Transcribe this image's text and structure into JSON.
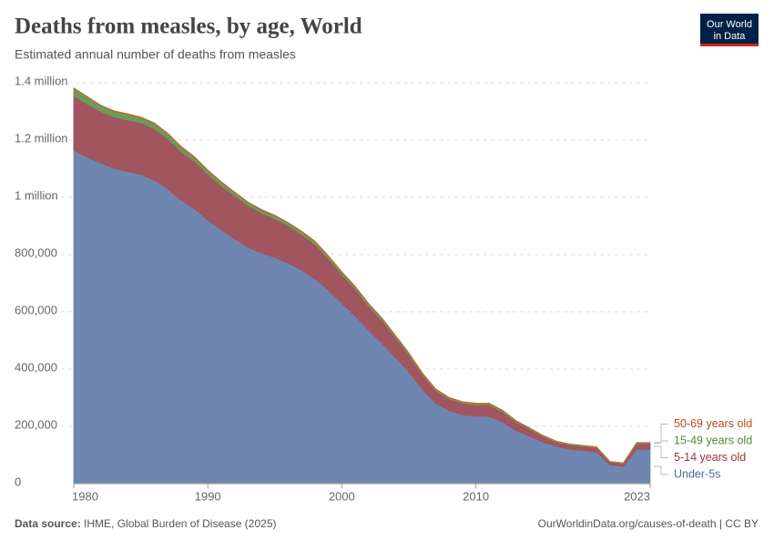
{
  "chart_data": {
    "type": "stacked-area",
    "title": "Deaths from measles, by age, World",
    "subtitle": "Estimated annual number of deaths from measles",
    "logo": [
      "Our World",
      "in Data"
    ],
    "source_label": "Data source:",
    "source": "IHME, Global Burden of Disease (2025)",
    "credit": "OurWorldinData.org/causes-of-death | CC BY",
    "x": [
      1980,
      1981,
      1982,
      1983,
      1984,
      1985,
      1986,
      1987,
      1988,
      1989,
      1990,
      1991,
      1992,
      1993,
      1994,
      1995,
      1996,
      1997,
      1998,
      1999,
      2000,
      2001,
      2002,
      2003,
      2004,
      2005,
      2006,
      2007,
      2008,
      2009,
      2010,
      2011,
      2012,
      2013,
      2014,
      2015,
      2016,
      2017,
      2018,
      2019,
      2020,
      2021,
      2022,
      2023
    ],
    "xlim": [
      1980,
      2023
    ],
    "xticks": [
      1980,
      1990,
      2000,
      2010,
      2023
    ],
    "ylim": [
      0,
      1400000
    ],
    "yticks": [
      0,
      {
        "value": 200000,
        "label": "200,000"
      },
      {
        "value": 400000,
        "label": "400,000"
      },
      {
        "value": 600000,
        "label": "600,000"
      },
      {
        "value": 800000,
        "label": "800,000"
      },
      {
        "value": 1000000,
        "label": "1 million"
      },
      {
        "value": 1200000,
        "label": "1.2 million"
      },
      {
        "value": 1400000,
        "label": "1.4 million"
      }
    ],
    "grid": true,
    "series": [
      {
        "name": "Under-5s",
        "color": "#6e86b0",
        "label_color": "#4c6a9c",
        "values": [
          1165000,
          1140000,
          1120000,
          1100000,
          1090000,
          1080000,
          1060000,
          1030000,
          990000,
          960000,
          920000,
          885000,
          855000,
          825000,
          805000,
          790000,
          770000,
          745000,
          715000,
          675000,
          630000,
          585000,
          535000,
          490000,
          440000,
          390000,
          330000,
          280000,
          255000,
          240000,
          235000,
          235000,
          215000,
          185000,
          165000,
          145000,
          130000,
          120000,
          115000,
          110000,
          65000,
          60000,
          120000,
          120000
        ]
      },
      {
        "name": "5-14 years old",
        "color": "#a1555e",
        "label_color": "#a2333b",
        "values": [
          190000,
          185000,
          180000,
          180000,
          180000,
          180000,
          180000,
          175000,
          170000,
          165000,
          160000,
          155000,
          150000,
          145000,
          140000,
          135000,
          130000,
          125000,
          120000,
          110000,
          100000,
          95000,
          85000,
          80000,
          70000,
          60000,
          50000,
          45000,
          40000,
          40000,
          40000,
          40000,
          35000,
          30000,
          25000,
          20000,
          15000,
          15000,
          15000,
          15000,
          10000,
          10000,
          20000,
          20000
        ]
      },
      {
        "name": "15-49 years old",
        "color": "#6e9a57",
        "label_color": "#4e8a36",
        "values": [
          25000,
          25000,
          20000,
          20000,
          20000,
          18000,
          18000,
          17000,
          16000,
          15000,
          14000,
          13000,
          12000,
          12000,
          11000,
          11000,
          10000,
          10000,
          10000,
          9000,
          9000,
          8000,
          8000,
          7000,
          7000,
          6000,
          6000,
          5000,
          5000,
          5000,
          5000,
          5000,
          5000,
          4000,
          4000,
          3000,
          3000,
          3000,
          3000,
          3000,
          2000,
          2000,
          3000,
          3000
        ]
      },
      {
        "name": "50-69 years old",
        "color": "#c2612a",
        "label_color": "#b54d1b",
        "values": [
          2000,
          2000,
          2000,
          2000,
          2000,
          2000,
          2000,
          2000,
          2000,
          2000,
          1500,
          1500,
          1500,
          1500,
          1500,
          1500,
          1500,
          1500,
          1500,
          1500,
          1000,
          1000,
          1000,
          1000,
          1000,
          1000,
          1000,
          1000,
          1000,
          1000,
          1000,
          1000,
          1000,
          1000,
          1000,
          500,
          500,
          500,
          500,
          500,
          500,
          500,
          500,
          500
        ]
      }
    ]
  }
}
